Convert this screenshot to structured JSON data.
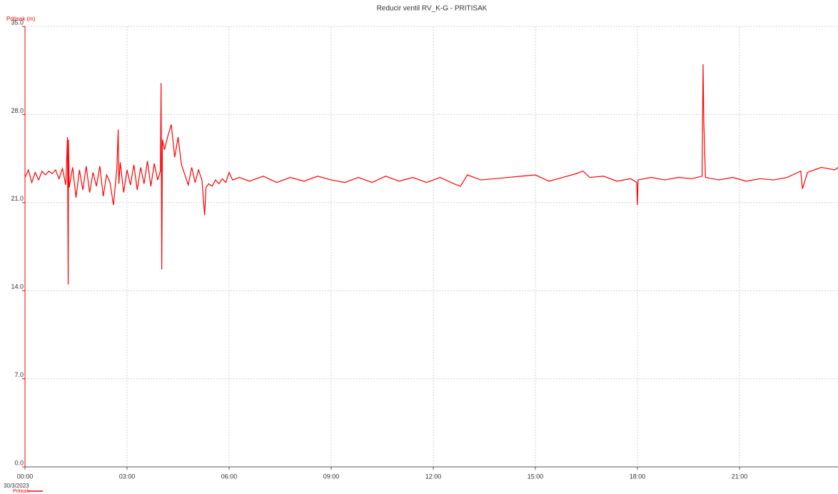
{
  "chart_data": {
    "type": "line",
    "title": "Reducir ventil RV_K-G - PRITISAK",
    "y_label": "Pritisak (m)",
    "x_date_label": "30/3/2023",
    "x": [
      0,
      0.1,
      0.2,
      0.3,
      0.4,
      0.5,
      0.6,
      0.7,
      0.8,
      0.9,
      1.0,
      1.1,
      1.2,
      1.25,
      1.27,
      1.28,
      1.3,
      1.4,
      1.5,
      1.6,
      1.7,
      1.8,
      1.9,
      2.0,
      2.1,
      2.2,
      2.3,
      2.4,
      2.5,
      2.6,
      2.7,
      2.74,
      2.76,
      2.8,
      2.9,
      3.0,
      3.1,
      3.2,
      3.3,
      3.4,
      3.5,
      3.6,
      3.7,
      3.8,
      3.9,
      3.98,
      4.0,
      4.02,
      4.04,
      4.1,
      4.2,
      4.3,
      4.4,
      4.5,
      4.6,
      4.7,
      4.8,
      4.9,
      5.0,
      5.1,
      5.2,
      5.28,
      5.32,
      5.4,
      5.5,
      5.6,
      5.7,
      5.8,
      5.9,
      6.0,
      6.1,
      6.3,
      6.6,
      7.0,
      7.4,
      7.8,
      8.2,
      8.6,
      9.0,
      9.4,
      9.8,
      10.2,
      10.6,
      11.0,
      11.4,
      11.8,
      12.2,
      12.6,
      12.8,
      13.0,
      13.4,
      13.8,
      14.2,
      14.6,
      15.0,
      15.4,
      15.8,
      16.2,
      16.4,
      16.6,
      17.0,
      17.4,
      17.8,
      17.98,
      18.0,
      18.02,
      18.4,
      18.8,
      19.2,
      19.6,
      19.9,
      19.93,
      19.95,
      20.0,
      20.4,
      20.8,
      21.2,
      21.6,
      22.0,
      22.4,
      22.8,
      22.85,
      23.0,
      23.4,
      23.8,
      23.95
    ],
    "series": [
      {
        "name": "Pritisak",
        "color": "#ff0000",
        "values": [
          23.0,
          23.6,
          22.6,
          23.4,
          22.8,
          23.5,
          23.2,
          23.5,
          23.3,
          23.6,
          22.9,
          23.7,
          22.4,
          26.2,
          14.5,
          26.0,
          22.2,
          23.8,
          21.4,
          23.6,
          22.0,
          23.9,
          21.8,
          23.4,
          22.3,
          23.9,
          21.5,
          23.2,
          22.6,
          20.8,
          23.7,
          26.8,
          22.5,
          24.2,
          21.8,
          23.6,
          22.4,
          24.0,
          22.0,
          23.8,
          22.5,
          24.3,
          22.3,
          24.1,
          22.8,
          23.5,
          30.5,
          15.7,
          26.0,
          25.2,
          26.3,
          27.2,
          24.6,
          26.2,
          24.0,
          23.2,
          22.4,
          23.8,
          22.6,
          23.6,
          22.8,
          20.0,
          22.2,
          22.5,
          22.3,
          22.8,
          22.5,
          22.9,
          22.6,
          23.4,
          22.8,
          23.0,
          22.7,
          23.1,
          22.6,
          23.0,
          22.7,
          23.1,
          22.8,
          22.6,
          23.0,
          22.6,
          23.1,
          22.7,
          23.0,
          22.6,
          23.0,
          22.5,
          22.3,
          23.2,
          22.8,
          22.9,
          23.0,
          23.1,
          23.2,
          22.7,
          23.0,
          23.3,
          23.5,
          23.0,
          23.1,
          22.7,
          22.9,
          22.6,
          20.8,
          22.8,
          23.0,
          22.8,
          23.0,
          22.9,
          23.1,
          32.0,
          27.5,
          23.0,
          22.8,
          23.0,
          22.7,
          22.9,
          22.8,
          23.0,
          23.5,
          22.1,
          23.4,
          23.8,
          23.6,
          23.9
        ]
      }
    ],
    "xlim": [
      0,
      24
    ],
    "xticks": [
      {
        "value": 0,
        "label": "00:00"
      },
      {
        "value": 3,
        "label": "03:00"
      },
      {
        "value": 6,
        "label": "06:00"
      },
      {
        "value": 9,
        "label": "09:00"
      },
      {
        "value": 12,
        "label": "12:00"
      },
      {
        "value": 15,
        "label": "15:00"
      },
      {
        "value": 18,
        "label": "18:00"
      },
      {
        "value": 21,
        "label": "21:00"
      }
    ],
    "ylim": [
      0,
      35
    ],
    "yticks": [
      {
        "value": 0,
        "label": "0.0"
      },
      {
        "value": 7,
        "label": "7.0"
      },
      {
        "value": 14,
        "label": "14.0"
      },
      {
        "value": 21,
        "label": "21.0"
      },
      {
        "value": 28,
        "label": "28.0"
      },
      {
        "value": 35,
        "label": "35.0"
      }
    ],
    "grid": true
  }
}
